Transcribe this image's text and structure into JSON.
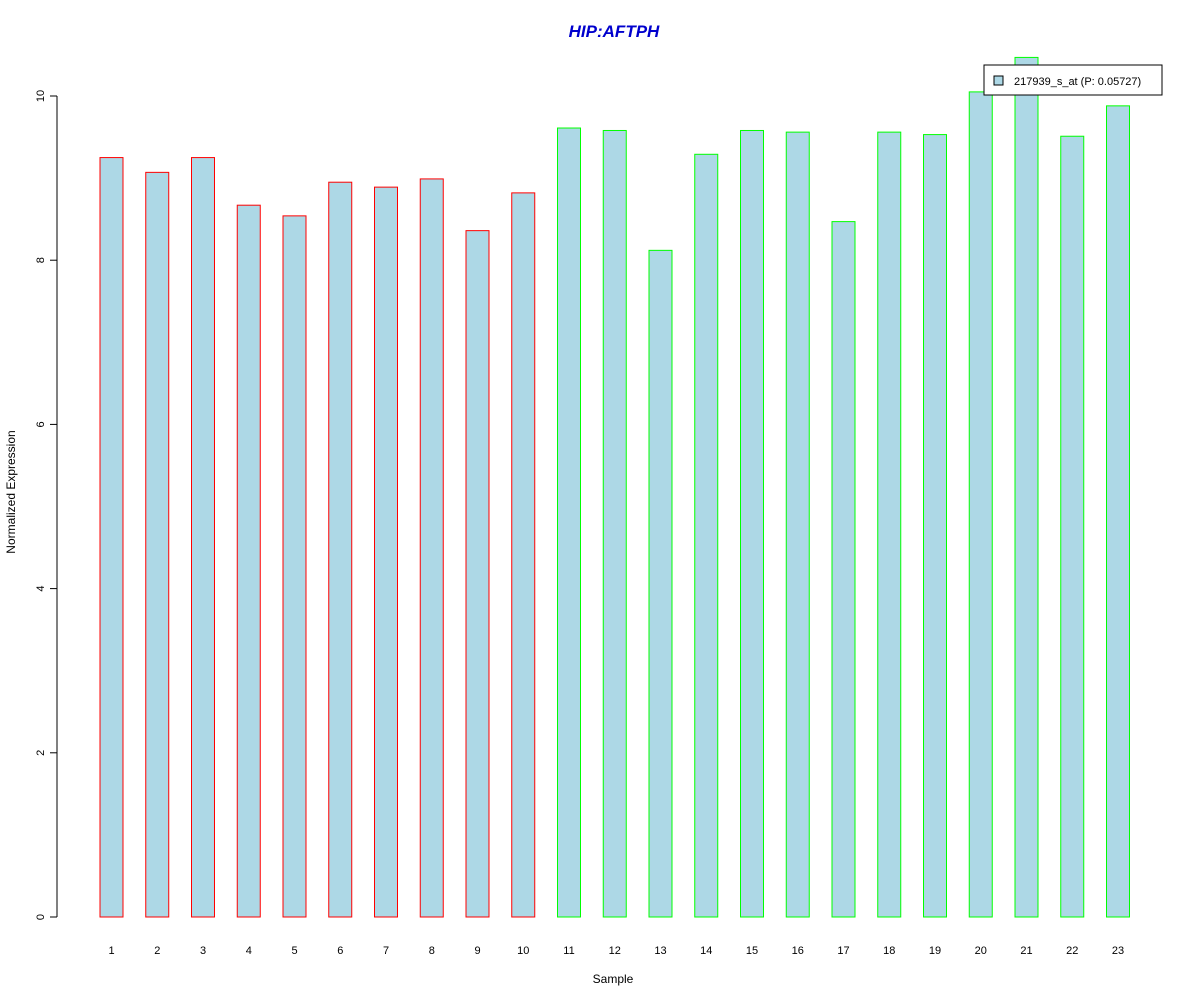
{
  "chart_data": {
    "type": "bar",
    "title": "HIP:AFTPH",
    "xlabel": "Sample",
    "ylabel": "Normalized Expression",
    "categories": [
      "1",
      "2",
      "3",
      "4",
      "5",
      "6",
      "7",
      "8",
      "9",
      "10",
      "11",
      "12",
      "13",
      "14",
      "15",
      "16",
      "17",
      "18",
      "19",
      "20",
      "21",
      "22",
      "23"
    ],
    "values": [
      9.25,
      9.07,
      9.25,
      8.67,
      8.54,
      8.95,
      8.89,
      8.99,
      8.36,
      8.82,
      9.61,
      9.58,
      8.12,
      9.29,
      9.58,
      9.56,
      8.47,
      9.56,
      9.53,
      10.05,
      10.47,
      9.51,
      9.88
    ],
    "group": [
      "a",
      "a",
      "a",
      "a",
      "a",
      "a",
      "a",
      "a",
      "a",
      "a",
      "b",
      "b",
      "b",
      "b",
      "b",
      "b",
      "b",
      "b",
      "b",
      "b",
      "b",
      "b",
      "b"
    ],
    "yticks": [
      "0",
      "2",
      "4",
      "6",
      "8",
      "10"
    ],
    "ylim": [
      0,
      10.5
    ],
    "grid": false,
    "legend": {
      "placement": "top-right",
      "entries": [
        {
          "label": "217939_s_at (P: 0.05727)",
          "color": "#add8e6"
        }
      ]
    },
    "colors": {
      "fill": "#add8e6",
      "border_a": "#ff0000",
      "border_b": "#00ff00",
      "title": "#0000cd"
    }
  }
}
